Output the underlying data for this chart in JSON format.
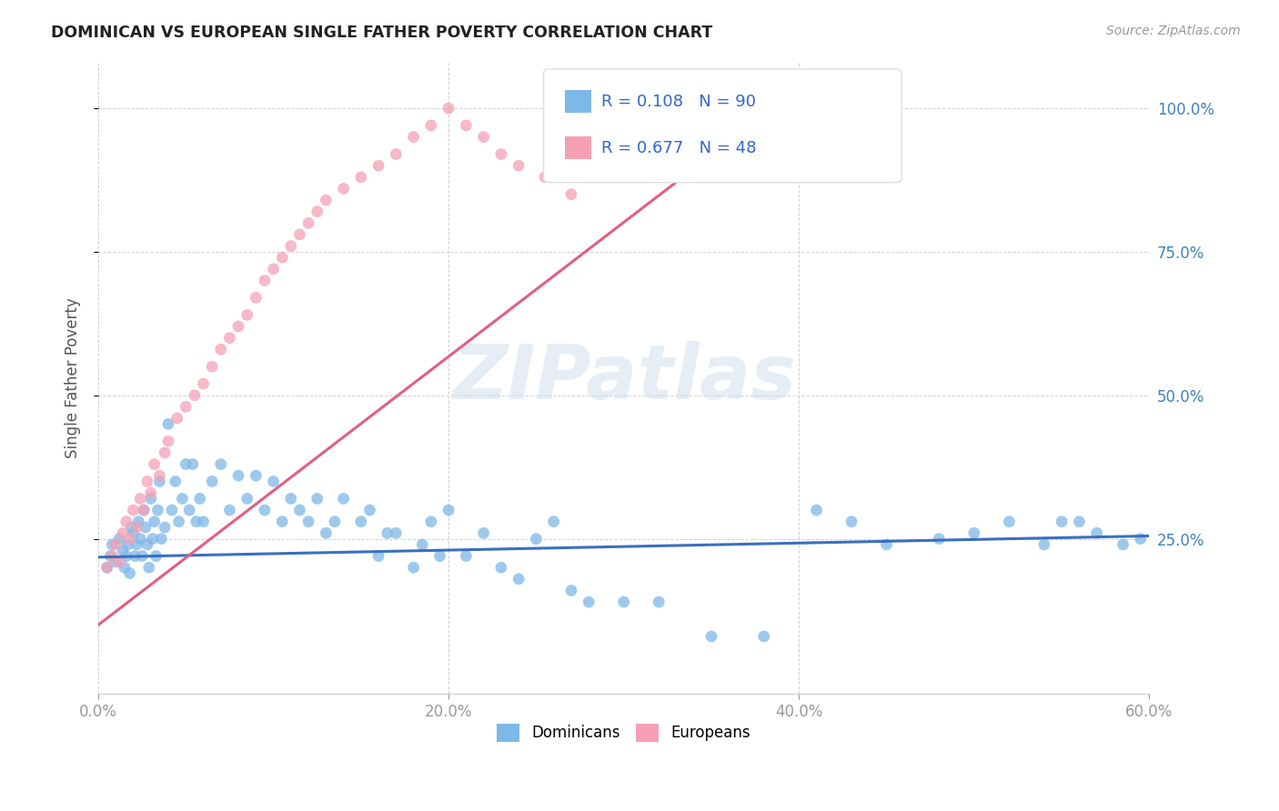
{
  "title": "DOMINICAN VS EUROPEAN SINGLE FATHER POVERTY CORRELATION CHART",
  "source": "Source: ZipAtlas.com",
  "ylabel": "Single Father Poverty",
  "xlabel": "",
  "watermark": "ZIPatlas",
  "xlim": [
    0.0,
    0.6
  ],
  "ylim": [
    -0.02,
    1.08
  ],
  "xtick_labels": [
    "0.0%",
    "20.0%",
    "40.0%",
    "60.0%"
  ],
  "xtick_vals": [
    0.0,
    0.2,
    0.4,
    0.6
  ],
  "ytick_labels": [
    "25.0%",
    "50.0%",
    "75.0%",
    "100.0%"
  ],
  "ytick_vals": [
    0.25,
    0.5,
    0.75,
    1.0
  ],
  "dominican_color": "#7eb8e8",
  "european_color": "#f5a0b5",
  "dominican_line_color": "#3a6fc0",
  "european_line_color": "#e06080",
  "R_dominican": 0.108,
  "N_dominican": 90,
  "R_european": 0.677,
  "N_european": 48,
  "legend_label_dominican": "Dominicans",
  "legend_label_european": "Europeans",
  "dominican_x": [
    0.005,
    0.007,
    0.008,
    0.01,
    0.012,
    0.014,
    0.015,
    0.016,
    0.017,
    0.018,
    0.019,
    0.02,
    0.021,
    0.022,
    0.023,
    0.024,
    0.025,
    0.026,
    0.027,
    0.028,
    0.029,
    0.03,
    0.031,
    0.032,
    0.033,
    0.034,
    0.035,
    0.036,
    0.038,
    0.04,
    0.042,
    0.044,
    0.046,
    0.048,
    0.05,
    0.052,
    0.054,
    0.056,
    0.058,
    0.06,
    0.065,
    0.07,
    0.075,
    0.08,
    0.085,
    0.09,
    0.095,
    0.1,
    0.105,
    0.11,
    0.115,
    0.12,
    0.125,
    0.13,
    0.135,
    0.14,
    0.15,
    0.155,
    0.16,
    0.165,
    0.17,
    0.18,
    0.185,
    0.19,
    0.195,
    0.2,
    0.21,
    0.22,
    0.23,
    0.24,
    0.25,
    0.26,
    0.27,
    0.28,
    0.3,
    0.32,
    0.35,
    0.38,
    0.41,
    0.43,
    0.45,
    0.48,
    0.5,
    0.52,
    0.54,
    0.55,
    0.56,
    0.57,
    0.585,
    0.595
  ],
  "dominican_y": [
    0.2,
    0.22,
    0.24,
    0.21,
    0.25,
    0.23,
    0.2,
    0.22,
    0.24,
    0.19,
    0.27,
    0.26,
    0.22,
    0.24,
    0.28,
    0.25,
    0.22,
    0.3,
    0.27,
    0.24,
    0.2,
    0.32,
    0.25,
    0.28,
    0.22,
    0.3,
    0.35,
    0.25,
    0.27,
    0.45,
    0.3,
    0.35,
    0.28,
    0.32,
    0.38,
    0.3,
    0.38,
    0.28,
    0.32,
    0.28,
    0.35,
    0.38,
    0.3,
    0.36,
    0.32,
    0.36,
    0.3,
    0.35,
    0.28,
    0.32,
    0.3,
    0.28,
    0.32,
    0.26,
    0.28,
    0.32,
    0.28,
    0.3,
    0.22,
    0.26,
    0.26,
    0.2,
    0.24,
    0.28,
    0.22,
    0.3,
    0.22,
    0.26,
    0.2,
    0.18,
    0.25,
    0.28,
    0.16,
    0.14,
    0.14,
    0.14,
    0.08,
    0.08,
    0.3,
    0.28,
    0.24,
    0.25,
    0.26,
    0.28,
    0.24,
    0.28,
    0.28,
    0.26,
    0.24,
    0.25
  ],
  "european_x": [
    0.005,
    0.008,
    0.01,
    0.012,
    0.014,
    0.016,
    0.018,
    0.02,
    0.022,
    0.024,
    0.026,
    0.028,
    0.03,
    0.032,
    0.035,
    0.038,
    0.04,
    0.045,
    0.05,
    0.055,
    0.06,
    0.065,
    0.07,
    0.075,
    0.08,
    0.085,
    0.09,
    0.095,
    0.1,
    0.105,
    0.11,
    0.115,
    0.12,
    0.125,
    0.13,
    0.14,
    0.15,
    0.16,
    0.17,
    0.18,
    0.19,
    0.2,
    0.21,
    0.22,
    0.23,
    0.24,
    0.255,
    0.27
  ],
  "european_y": [
    0.2,
    0.22,
    0.24,
    0.21,
    0.26,
    0.28,
    0.25,
    0.3,
    0.27,
    0.32,
    0.3,
    0.35,
    0.33,
    0.38,
    0.36,
    0.4,
    0.42,
    0.46,
    0.48,
    0.5,
    0.52,
    0.55,
    0.58,
    0.6,
    0.62,
    0.64,
    0.67,
    0.7,
    0.72,
    0.74,
    0.76,
    0.78,
    0.8,
    0.82,
    0.84,
    0.86,
    0.88,
    0.9,
    0.92,
    0.95,
    0.97,
    1.0,
    0.97,
    0.95,
    0.92,
    0.9,
    0.88,
    0.85
  ],
  "dom_line_x0": 0.0,
  "dom_line_x1": 0.6,
  "dom_line_y0": 0.218,
  "dom_line_y1": 0.255,
  "eur_line_x0": 0.0,
  "eur_line_x1": 0.385,
  "eur_line_y0": 0.1,
  "eur_line_y1": 1.0
}
